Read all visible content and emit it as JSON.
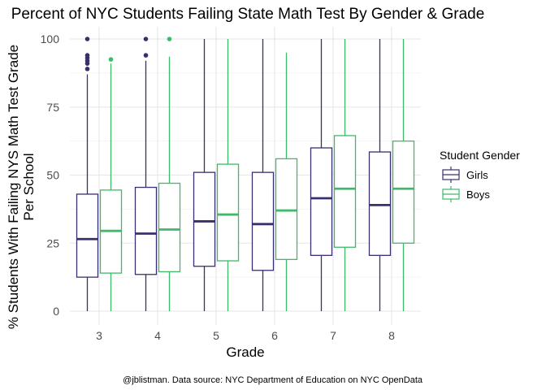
{
  "chart_data": {
    "type": "boxplot",
    "title": "Percent of NYC Students Failing State Math Test By Gender & Grade",
    "xlabel": "Grade",
    "ylabel_lines": [
      "% Students With Failing NYS Math Test Grade",
      "Per School"
    ],
    "caption": "@jblistman. Data source: NYC Department of Education on NYC OpenData",
    "ylim": [
      0,
      100
    ],
    "y_ticks": [
      0,
      25,
      50,
      75,
      100
    ],
    "y_tick_labels": [
      "0",
      "25",
      "50",
      "75",
      "100"
    ],
    "categories": [
      "3",
      "4",
      "5",
      "6",
      "7",
      "8"
    ],
    "grid": true,
    "legend": {
      "title": "Student Gender",
      "placement": "right"
    },
    "series": [
      {
        "name": "Girls",
        "color": "#3b2e6e",
        "boxes": [
          {
            "min": 0,
            "q1": 12.5,
            "median": 26.5,
            "q3": 43,
            "max": 87,
            "outliers": [
              89,
              91,
              92,
              93,
              94,
              100
            ]
          },
          {
            "min": 0,
            "q1": 13.5,
            "median": 28.5,
            "q3": 45.5,
            "max": 92,
            "outliers": [
              94,
              100
            ]
          },
          {
            "min": 0,
            "q1": 16.5,
            "median": 33,
            "q3": 51,
            "max": 100,
            "outliers": []
          },
          {
            "min": 0,
            "q1": 15,
            "median": 32,
            "q3": 51,
            "max": 100,
            "outliers": []
          },
          {
            "min": 0,
            "q1": 20.5,
            "median": 41.5,
            "q3": 60,
            "max": 100,
            "outliers": []
          },
          {
            "min": 0,
            "q1": 20.5,
            "median": 39,
            "q3": 58.5,
            "max": 100,
            "outliers": []
          }
        ]
      },
      {
        "name": "Boys",
        "color": "#3dba6a",
        "boxes": [
          {
            "min": 0,
            "q1": 14,
            "median": 29.5,
            "q3": 44.5,
            "max": 91,
            "outliers": [
              92.5
            ]
          },
          {
            "min": 0,
            "q1": 14.5,
            "median": 30,
            "q3": 47,
            "max": 93.5,
            "outliers": [
              100
            ]
          },
          {
            "min": 0,
            "q1": 18.5,
            "median": 35.5,
            "q3": 54,
            "max": 100,
            "outliers": []
          },
          {
            "min": 0,
            "q1": 19,
            "median": 37,
            "q3": 56,
            "max": 95,
            "outliers": []
          },
          {
            "min": 0,
            "q1": 23.5,
            "median": 45,
            "q3": 64.5,
            "max": 100,
            "outliers": []
          },
          {
            "min": 0,
            "q1": 25,
            "median": 45,
            "q3": 62.5,
            "max": 100,
            "outliers": []
          }
        ]
      }
    ]
  }
}
